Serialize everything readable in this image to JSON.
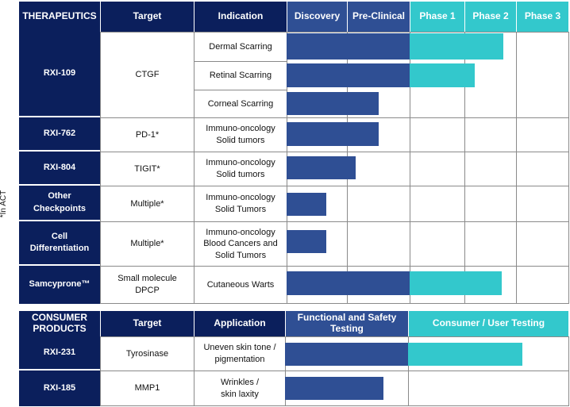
{
  "side_note": "*In ACT",
  "therapeutics": {
    "headers": {
      "therapeutics": "THERAPEUTICS",
      "target": "Target",
      "indication": "Indication",
      "phases": [
        "Discovery",
        "Pre-Clinical",
        "Phase 1",
        "Phase 2",
        "Phase 3"
      ]
    },
    "rows": [
      {
        "name": "RXI-109",
        "target": "CTGF",
        "indications": [
          "Dermal Scarring",
          "Retinal Scarring",
          "Corneal Scarring"
        ]
      },
      {
        "name": "RXI-762",
        "target": "PD-1*",
        "indication_lines": [
          "Immuno-oncology",
          "Solid tumors"
        ]
      },
      {
        "name": "RXI-804",
        "target": "TIGIT*",
        "indication_lines": [
          "Immuno-oncology",
          "Solid tumors"
        ]
      },
      {
        "name_lines": [
          "Other",
          "Checkpoints"
        ],
        "target": "Multiple*",
        "indication_lines": [
          "Immuno-oncology",
          "Solid Tumors"
        ]
      },
      {
        "name_lines": [
          "Cell",
          "Differentiation"
        ],
        "target": "Multiple*",
        "indication_lines": [
          "Immuno-oncology",
          "Blood Cancers and",
          "Solid Tumors"
        ]
      },
      {
        "name": "Samcyprone™",
        "target_lines": [
          "Small molecule",
          "DPCP"
        ],
        "indication": "Cutaneous Warts"
      }
    ]
  },
  "consumer": {
    "headers": {
      "products_lines": [
        "CONSUMER",
        "PRODUCTS"
      ],
      "target": "Target",
      "application": "Application",
      "stage1_lines": [
        "Functional and Safety",
        "Testing"
      ],
      "stage2": "Consumer / User Testing"
    },
    "rows": [
      {
        "name": "RXI-231",
        "target": "Tyrosinase",
        "application_lines": [
          "Uneven skin tone /",
          "pigmentation"
        ]
      },
      {
        "name": "RXI-185",
        "target": "MMP1",
        "application_lines": [
          "Wrinkles /",
          "skin laxity"
        ]
      }
    ]
  },
  "progress": {
    "therapeutics_phase_scale": "0 = start of Discovery, 5 = end of Phase 3",
    "therapeutics": [
      {
        "row": "RXI-109 Dermal Scarring",
        "progress": 3.75
      },
      {
        "row": "RXI-109 Retinal Scarring",
        "progress": 3.2
      },
      {
        "row": "RXI-109 Corneal Scarring",
        "progress": 1.5
      },
      {
        "row": "RXI-762",
        "progress": 1.5
      },
      {
        "row": "RXI-804",
        "progress": 1.14
      },
      {
        "row": "Other Checkpoints",
        "progress": 0.66
      },
      {
        "row": "Cell Differentiation",
        "progress": 0.66
      },
      {
        "row": "Samcyprone™",
        "progress": 3.72
      }
    ],
    "consumer_stage_scale": "0 = start of Functional and Safety Testing, 2 = end of Consumer / User Testing",
    "consumer": [
      {
        "row": "RXI-231",
        "progress": 1.71
      },
      {
        "row": "RXI-185",
        "progress": 0.8
      }
    ],
    "colors": {
      "early": "#2f4f94",
      "clinical": "#33c8cc",
      "navy": "#0b1f5c"
    }
  }
}
